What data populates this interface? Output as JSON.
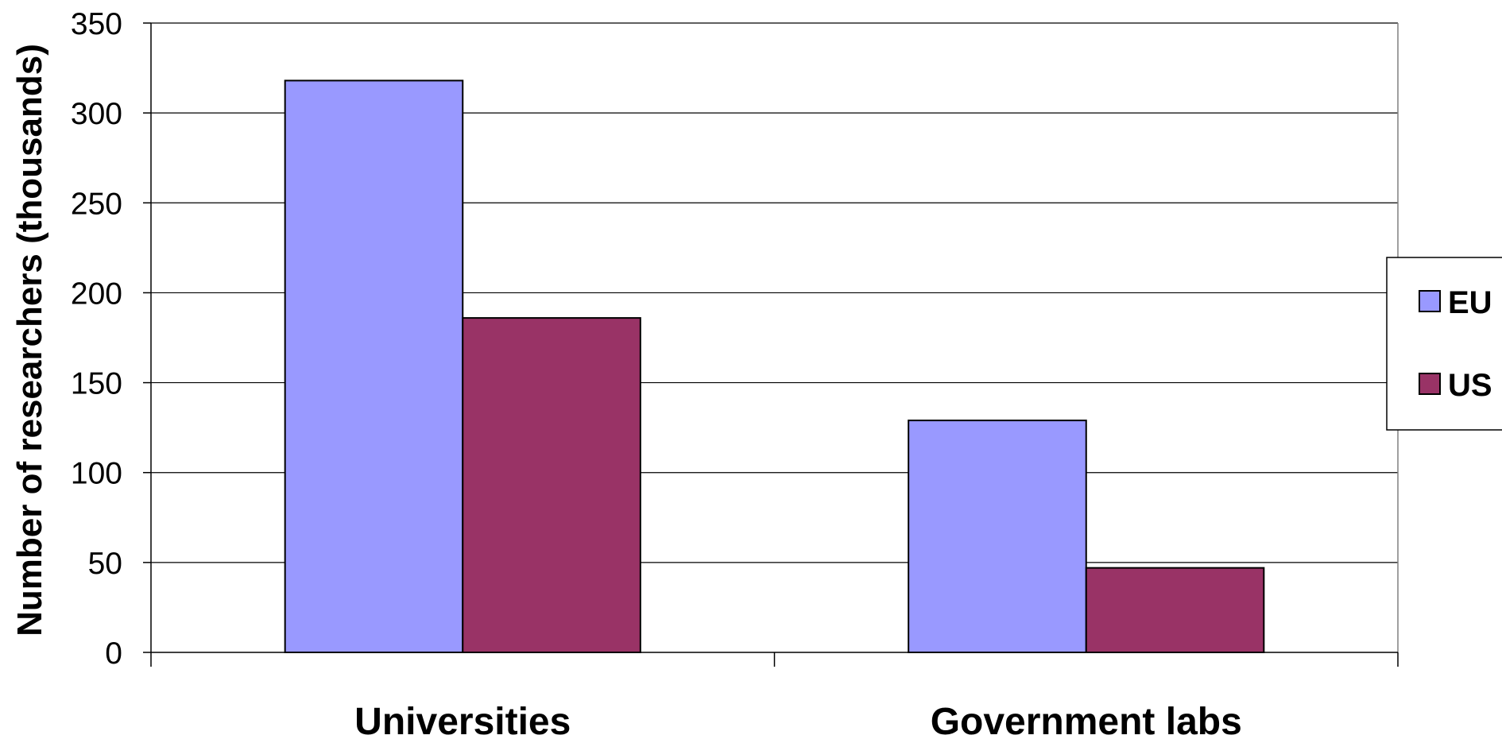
{
  "chart_data": {
    "type": "bar",
    "title": "",
    "xlabel": "",
    "ylabel": "Number of researchers (thousands)",
    "categories": [
      "Universities",
      "Government labs"
    ],
    "series": [
      {
        "name": "EU",
        "values": [
          318,
          129
        ],
        "color": "#9999ff"
      },
      {
        "name": "US",
        "values": [
          186,
          47
        ],
        "color": "#993366"
      }
    ],
    "ylim": [
      0,
      350
    ],
    "yticks": [
      0,
      50,
      100,
      150,
      200,
      250,
      300,
      350
    ],
    "grid": true,
    "legend_position": "right"
  }
}
